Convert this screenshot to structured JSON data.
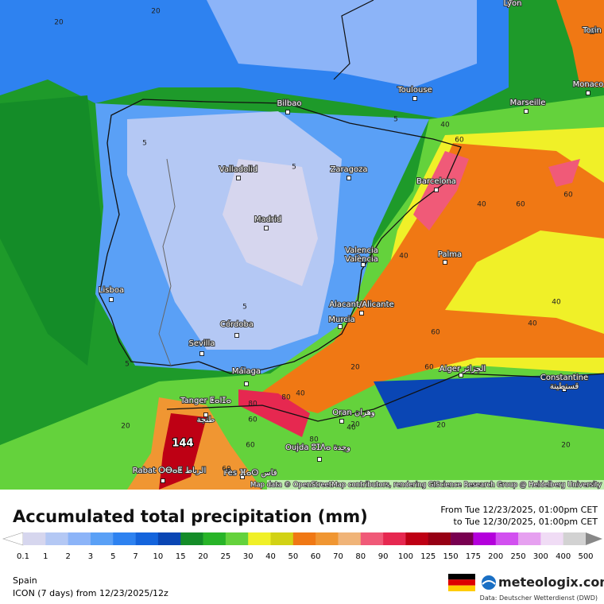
{
  "map": {
    "cities": [
      {
        "name": "Lyon"
      },
      {
        "name": "Torin"
      },
      {
        "name": "Monaco"
      },
      {
        "name": "Marseille"
      },
      {
        "name": "Toulouse"
      },
      {
        "name": "Bilbao"
      },
      {
        "name": "Zaragoza"
      },
      {
        "name": "Barcelona"
      },
      {
        "name": "Valladolid"
      },
      {
        "name": "Madrid"
      },
      {
        "name": "Valencia",
        "alt": "València"
      },
      {
        "name": "Palma"
      },
      {
        "name": "Lisboa"
      },
      {
        "name": "Alacant/Alicante"
      },
      {
        "name": "Murcia"
      },
      {
        "name": "Córdoba"
      },
      {
        "name": "Sevilla"
      },
      {
        "name": "Málaga"
      },
      {
        "name": "Tanger ⵟⴰⵏⵊⴰ",
        "alt": "طنجة"
      },
      {
        "name": "Oran وهران"
      },
      {
        "name": "Oujda ⵓⵊⴷⴰ وجدة"
      },
      {
        "name": "Rabat ⵔⴱⴰⵟ الرباط"
      },
      {
        "name": "Fès ⴼⴰⵙ فاس"
      },
      {
        "name": "Alger الجزائر"
      },
      {
        "name": "Constantine",
        "alt": "قسنطينة"
      }
    ],
    "contour_labels": [
      "20",
      "20",
      "5",
      "5",
      "5",
      "5",
      "5",
      "40",
      "60",
      "40",
      "60",
      "40",
      "60",
      "40",
      "40",
      "60",
      "80",
      "60",
      "80",
      "40",
      "20",
      "20",
      "20",
      "60",
      "40",
      "20",
      "80",
      "60",
      "20",
      "60"
    ],
    "max_label": "144",
    "attribution": "Map data © OpenStreetMap contributors, rendering GIScience Research Group @ Heidelberg University"
  },
  "header": {
    "title": "Accumulated total precipitation (mm)",
    "from": "From Tue 12/23/2025, 01:00pm CET",
    "to": "to Tue 12/30/2025, 01:00pm CET"
  },
  "legend": {
    "labels": [
      0.1,
      1,
      2,
      3,
      5,
      7,
      10,
      15,
      20,
      25,
      30,
      40,
      50,
      60,
      70,
      80,
      90,
      100,
      125,
      150,
      175,
      200,
      250,
      300,
      400,
      500
    ],
    "colors": [
      "#d6d6ee",
      "#b4c8f4",
      "#8cb4f8",
      "#5aa0f6",
      "#2e82f0",
      "#1464dc",
      "#0a46b4",
      "#148c28",
      "#28b428",
      "#64d23c",
      "#f0f028",
      "#d2d214",
      "#f07814",
      "#f09632",
      "#f0b478",
      "#f05a78",
      "#e62850",
      "#be0014",
      "#960014",
      "#780050",
      "#b400dc",
      "#d250f0",
      "#e6a0f0",
      "#f0dcf5",
      "#d2d2d2"
    ]
  },
  "footer": {
    "region": "Spain",
    "model": "ICON (7 days) from 12/23/2025/12z",
    "brand": "meteologix.com",
    "source": "Data: Deutscher Wetterdienst (DWD)"
  }
}
